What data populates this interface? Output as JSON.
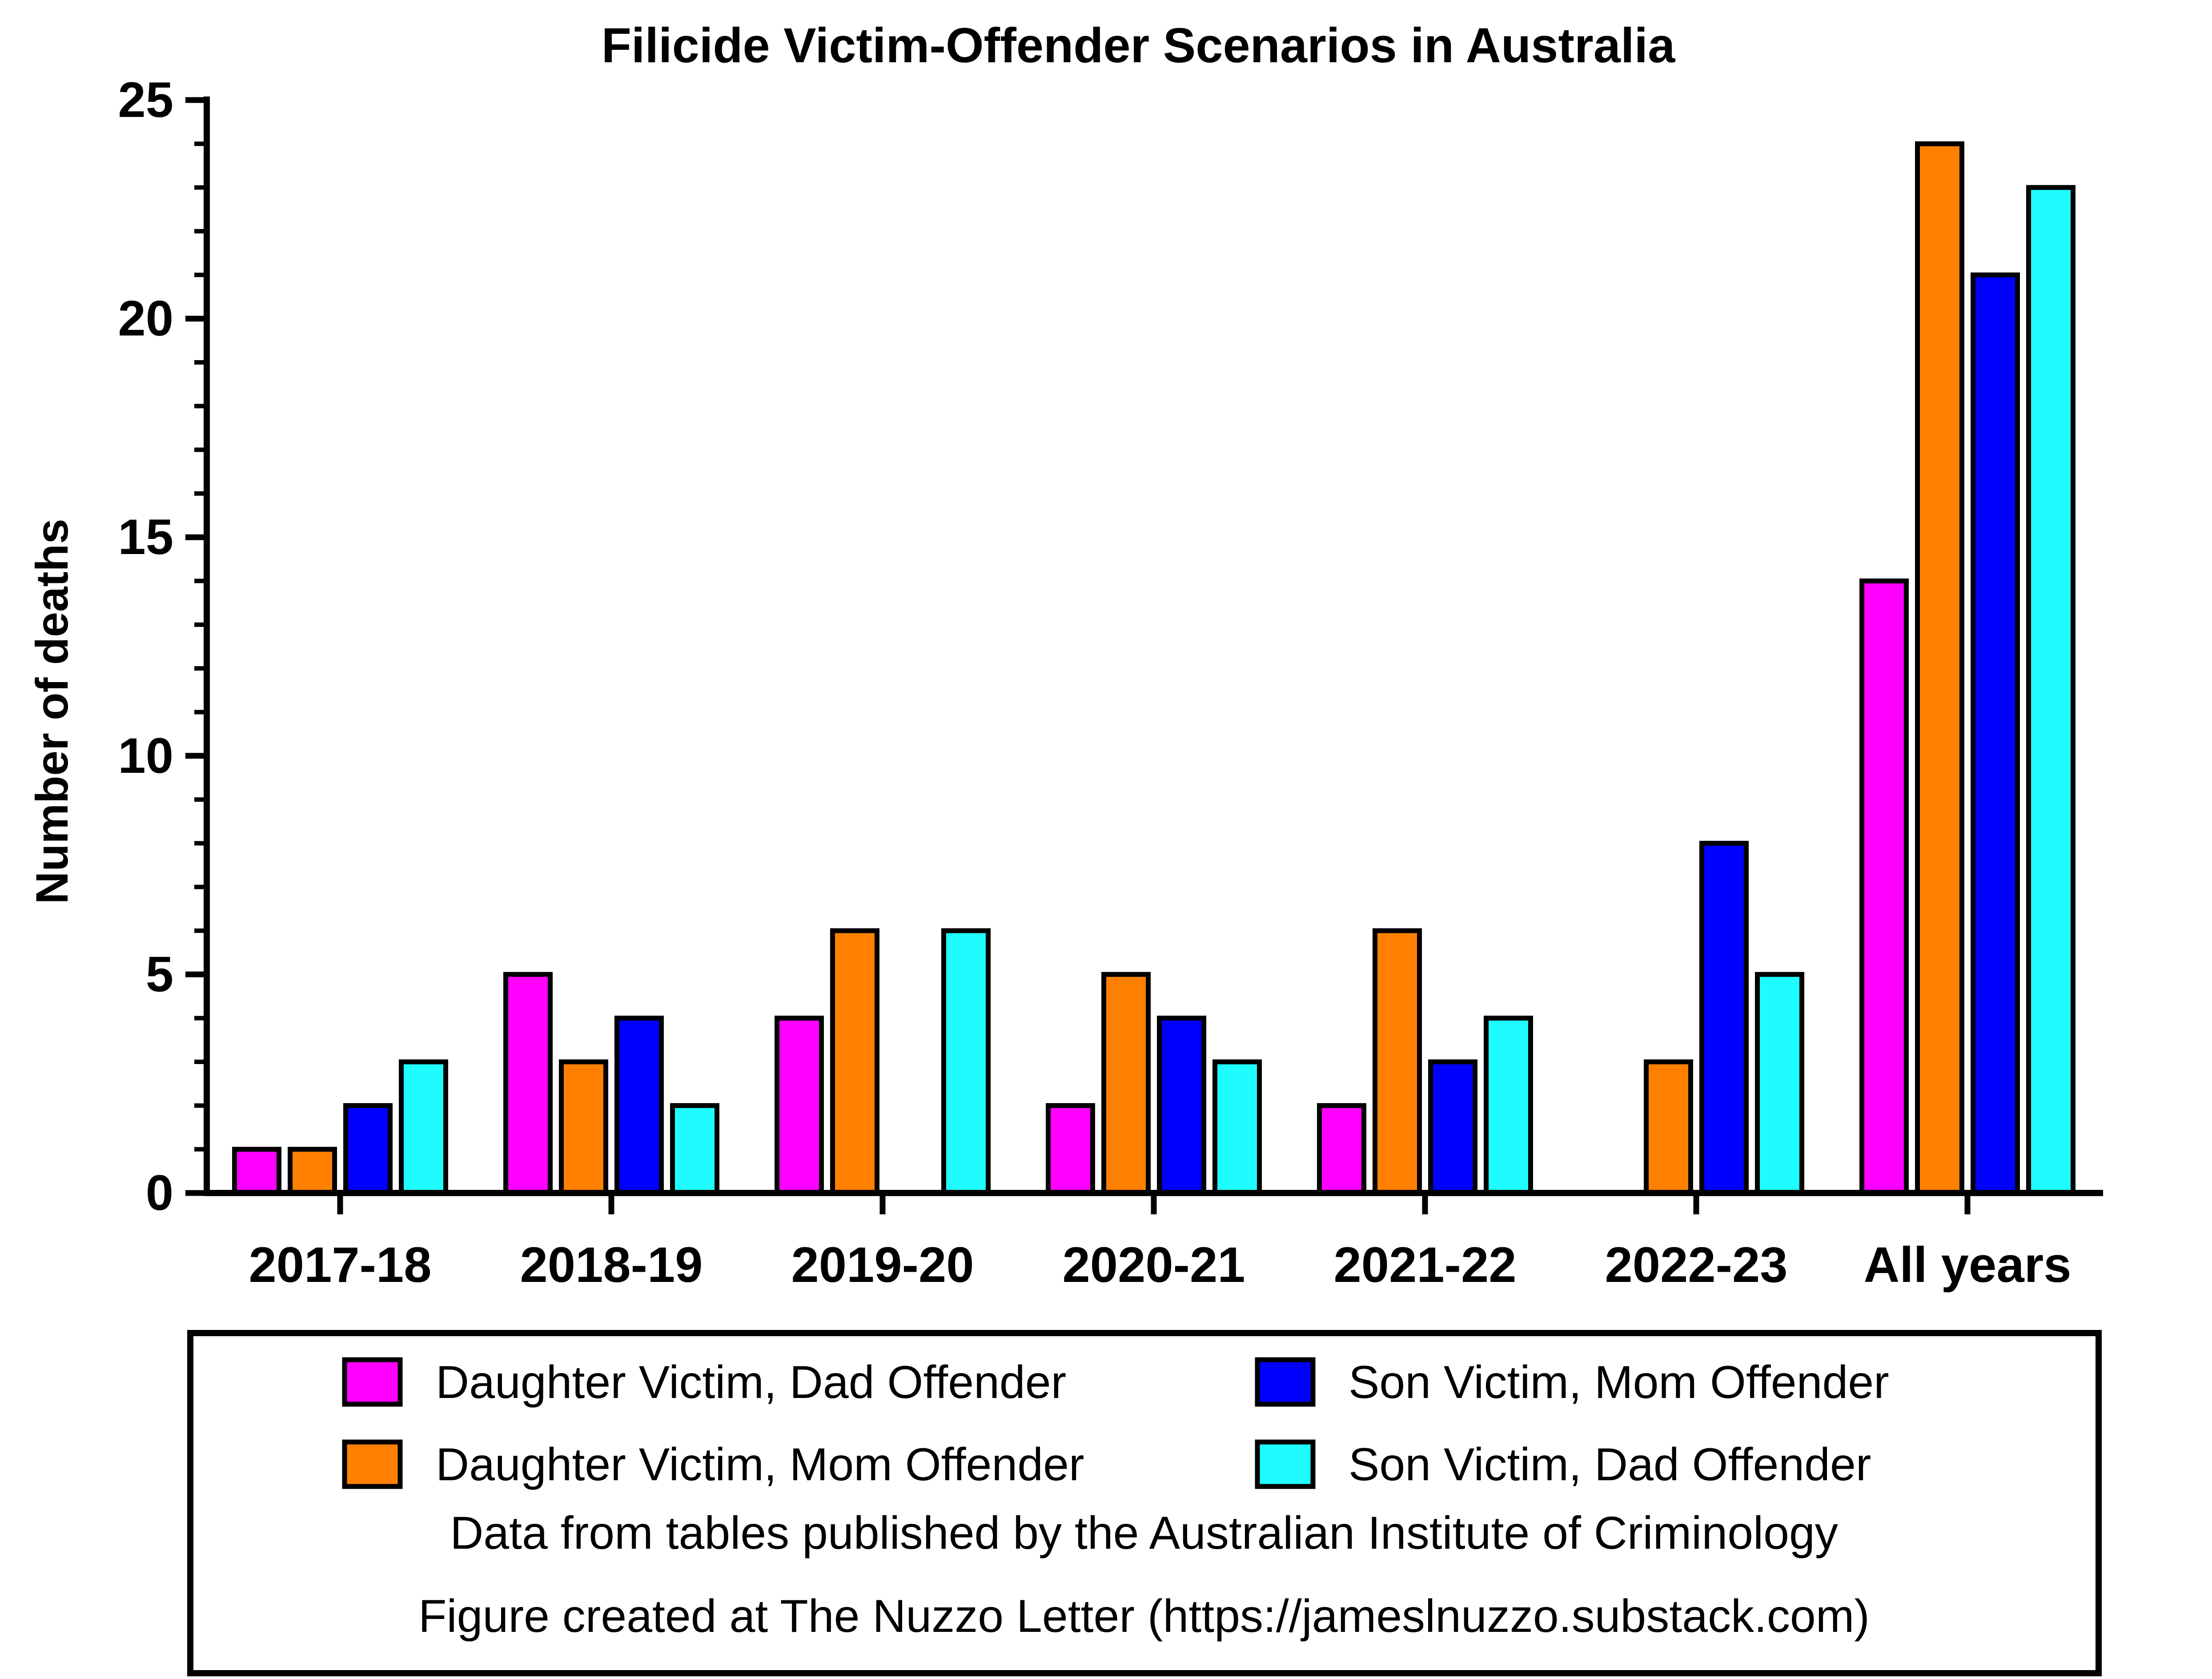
{
  "chart_data": {
    "type": "bar",
    "title": "Filicide Victim-Offender Scenarios in Australia",
    "xlabel": "",
    "ylabel": "Number of deaths",
    "ylim": [
      0,
      25
    ],
    "yticks": [
      0,
      5,
      10,
      15,
      20,
      25
    ],
    "grid": false,
    "legend_position": "bottom",
    "categories": [
      "2017-18",
      "2018-19",
      "2019-20",
      "2020-21",
      "2021-22",
      "2022-23",
      "All years"
    ],
    "series": [
      {
        "name": "Daughter Victim, Dad Offender",
        "color": "#ff00ff",
        "values": [
          1,
          5,
          4,
          2,
          2,
          0,
          14
        ]
      },
      {
        "name": "Daughter Victim, Mom Offender",
        "color": "#ff8000",
        "values": [
          1,
          3,
          6,
          5,
          6,
          3,
          24
        ]
      },
      {
        "name": "Son Victim, Mom Offender",
        "color": "#0000ff",
        "values": [
          2,
          4,
          0,
          4,
          3,
          8,
          21
        ]
      },
      {
        "name": "Son Victim, Dad Offender",
        "color": "#1ffcff",
        "values": [
          3,
          2,
          6,
          3,
          4,
          5,
          23
        ]
      }
    ],
    "notes": [
      "Data from tables published by the Australian Institute of Criminology",
      "Figure created at The Nuzzo Letter (https://jameslnuzzo.substack.com)"
    ]
  }
}
